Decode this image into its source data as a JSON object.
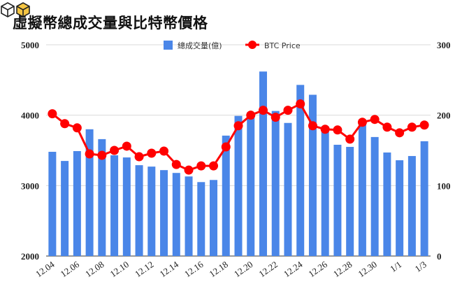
{
  "title": "虛擬幣總成交量與比特幣價格",
  "colors": {
    "bar": "#4a86e8",
    "line": "#ff0000",
    "grid": "#d9d9d9"
  },
  "chart_data": {
    "type": "bar+line",
    "categories": [
      "12.04",
      "12.05",
      "12.06",
      "12.07",
      "12.08",
      "12.09",
      "12.10",
      "12.11",
      "12.12",
      "12.13",
      "12.14",
      "12.15",
      "12.16",
      "12.17",
      "12.18",
      "12.19",
      "12.20",
      "12.21",
      "12.22",
      "12.23",
      "12.24",
      "12.25",
      "12.26",
      "12.27",
      "12.28",
      "12.29",
      "12.30",
      "12.31",
      "1/1",
      "1/2",
      "1/3"
    ],
    "x_tick_labels": [
      "12.04",
      "12.06",
      "12.08",
      "12.10",
      "12.12",
      "12.14",
      "12.16",
      "12.18",
      "12.20",
      "12.22",
      "12.24",
      "12.26",
      "12.28",
      "12.30",
      "1/1",
      "1/3"
    ],
    "series": [
      {
        "name": "總成交量(億)",
        "type": "bar",
        "axis": "left",
        "values": [
          3480,
          3350,
          3490,
          3800,
          3660,
          3430,
          3400,
          3290,
          3270,
          3220,
          3180,
          3130,
          3050,
          3080,
          3710,
          3990,
          4040,
          4620,
          4060,
          3890,
          4430,
          4290,
          3840,
          3580,
          3550,
          3870,
          3690,
          3470,
          3360,
          3420,
          3630
        ]
      },
      {
        "name": "BTC Price",
        "type": "line",
        "axis": "right",
        "values": [
          202,
          188,
          182,
          145,
          143,
          150,
          156,
          141,
          146,
          149,
          130,
          122,
          128,
          128,
          155,
          185,
          200,
          207,
          197,
          207,
          216,
          185,
          180,
          179,
          166,
          190,
          194,
          183,
          175,
          183,
          186
        ]
      }
    ],
    "y_left": {
      "min": 2000,
      "max": 5000,
      "ticks": [
        2000,
        3000,
        4000,
        5000
      ]
    },
    "y_right": {
      "min": 0,
      "max": 300,
      "ticks": [
        0,
        100,
        200,
        300
      ]
    },
    "grid": true,
    "legend_position": "top"
  }
}
